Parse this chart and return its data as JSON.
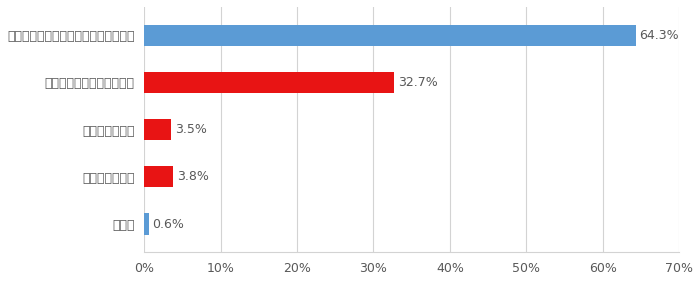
{
  "categories": [
    "キッチン・ダイニング・リビング周り",
    "押入・納戸・クローゼット",
    "ガレージ・納屋",
    "物置き（屋外）",
    "その他"
  ],
  "values": [
    64.3,
    32.7,
    3.5,
    3.8,
    0.6
  ],
  "bar_colors": [
    "#5b9bd5",
    "#e81414",
    "#e81414",
    "#e81414",
    "#5b9bd5"
  ],
  "labels": [
    "64.3%",
    "32.7%",
    "3.5%",
    "3.8%",
    "0.6%"
  ],
  "xlim": [
    0,
    70
  ],
  "xticks": [
    0,
    10,
    20,
    30,
    40,
    50,
    60,
    70
  ],
  "xtick_labels": [
    "0%",
    "10%",
    "20%",
    "30%",
    "40%",
    "50%",
    "60%",
    "70%"
  ],
  "background_color": "#ffffff",
  "grid_color": "#d3d3d3",
  "bar_height": 0.45,
  "label_fontsize": 9,
  "tick_fontsize": 9,
  "text_color": "#595959"
}
